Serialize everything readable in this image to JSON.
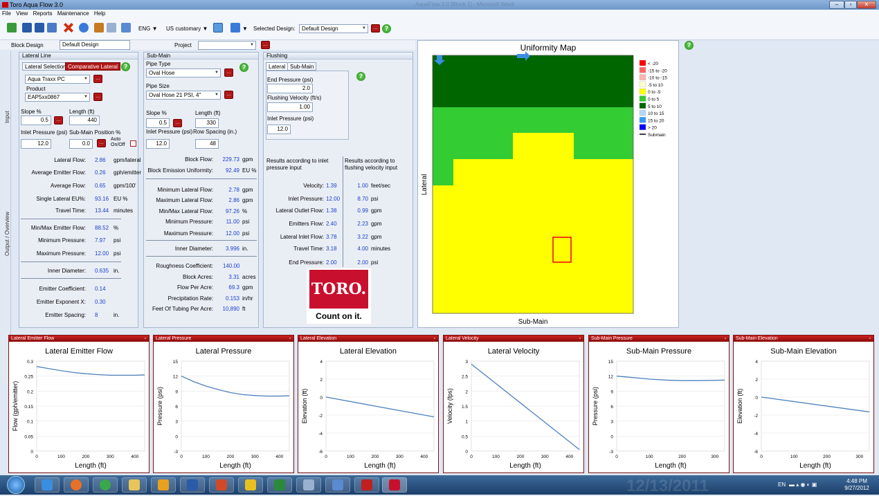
{
  "window": {
    "title": "Toro Aqua Flow 3.0",
    "ghost_title": "AquaFlow 3.0 [Block 1] - Microsoft Word"
  },
  "menu": [
    "File",
    "View",
    "Reports",
    "Maintenance",
    "Help"
  ],
  "toolbar": {
    "language": "ENG",
    "units": "US customary",
    "selected_design_label": "Selected Design:",
    "selected_design": "Default Design"
  },
  "block": {
    "label": "Block Design",
    "value": "Default Design",
    "project_label": "Project",
    "project_value": ""
  },
  "side_tabs": {
    "input": "Input",
    "output": "Output / Overview"
  },
  "lateral": {
    "title": "Lateral Line",
    "tab1": "Lateral Selection",
    "tab2": "Comparative Lateral",
    "pipe": "Aqua Traxx PC",
    "product_label": "Product",
    "product": "EAP5xx0867",
    "slope_label": "Slope %",
    "slope": "0.5",
    "length_label": "Length (ft)",
    "length": "440",
    "inlet_label": "Inlet Pressure (psi)",
    "inlet": "12.0",
    "submain_pos_label": "Sub-Main Position %",
    "submain_pos": "0.0",
    "auto_label": "Auto On/Off",
    "results": [
      {
        "label": "Lateral Flow:",
        "value": "2.86",
        "unit": "gpm/lateral"
      },
      {
        "label": "Average Emitter Flow:",
        "value": "0.26",
        "unit": "gph/emitter"
      },
      {
        "label": "Average Flow:",
        "value": "0.65",
        "unit": "gpm/100'"
      },
      {
        "label": "Single Lateral EU%:",
        "value": "93.16",
        "unit": "EU %"
      },
      {
        "label": "Travel Time:",
        "value": "13.44",
        "unit": "minutes"
      },
      {
        "label": "Min/Max Emitter Flow:",
        "value": "88.52",
        "unit": "%"
      },
      {
        "label": "Minimum Pressure:",
        "value": "7.97",
        "unit": "psi"
      },
      {
        "label": "Maximum Pressure:",
        "value": "12.00",
        "unit": "psi"
      },
      {
        "label": "Inner Diameter:",
        "value": "0.635",
        "unit": "in."
      },
      {
        "label": "Emitter Coefficient:",
        "value": "0.14",
        "unit": ""
      },
      {
        "label": "Emitter Exponent X:",
        "value": "0.30",
        "unit": ""
      },
      {
        "label": "Emitter Spacing:",
        "value": "8",
        "unit": "in."
      }
    ]
  },
  "submain": {
    "title": "Sub-Main",
    "pipe_type_label": "Pipe Type",
    "pipe_type": "Oval Hose",
    "pipe_size_label": "Pipe Size",
    "pipe_size": "Oval Hose 21 PSI, 4\"",
    "slope_label": "Slope %",
    "slope": "0.5",
    "length_label": "Length (ft)",
    "length": "330",
    "inlet_label": "Inlet Pressure (psi)",
    "inlet": "12.0",
    "row_label": "Row Spacing (in.)",
    "row": "48",
    "results": [
      {
        "label": "Block Flow:",
        "value": "229.73",
        "unit": "gpm"
      },
      {
        "label": "Block Emission Uniformity:",
        "value": "92.49",
        "unit": "EU %"
      },
      {
        "label": "Minimum Lateral Flow:",
        "value": "2.78",
        "unit": "gpm"
      },
      {
        "label": "Maximum Lateral Flow:",
        "value": "2.86",
        "unit": "gpm"
      },
      {
        "label": "Min/Max Lateral Flow:",
        "value": "97.26",
        "unit": "%"
      },
      {
        "label": "Minimum Pressure:",
        "value": "11.00",
        "unit": "psi"
      },
      {
        "label": "Maximum Pressure:",
        "value": "12.00",
        "unit": "psi"
      },
      {
        "label": "Inner Diameter:",
        "value": "3.996",
        "unit": "in."
      },
      {
        "label": "Roughness Coefficient:",
        "value": "140.00",
        "unit": ""
      },
      {
        "label": "Block Acres:",
        "value": "3.31",
        "unit": "acres"
      },
      {
        "label": "Flow Per Acre:",
        "value": "69.3",
        "unit": "gpm"
      },
      {
        "label": "Precipitation Rate:",
        "value": "0.153",
        "unit": "in/hr"
      },
      {
        "label": "Feet Of Tubing Per Acre:",
        "value": "10,890",
        "unit": "ft"
      }
    ]
  },
  "flushing": {
    "title": "Flushing",
    "tab1": "Lateral",
    "tab2": "Sub-Main",
    "end_label": "End Pressure (psi)",
    "end": "2.0",
    "vel_label": "Flushing Velocity (ft/s)",
    "vel": "1.00",
    "inlet_label": "Inlet Pressure (psi)",
    "inlet": "12.0",
    "head1": "Results according to inlet pressure input",
    "head2": "Results according to flushing velocity input",
    "results": [
      {
        "label": "Velocity:",
        "v1": "1.39",
        "v2": "1.00",
        "unit": "feet/sec"
      },
      {
        "label": "Inlet Pressure:",
        "v1": "12.00",
        "v2": "8.70",
        "unit": "psi"
      },
      {
        "label": "Lateral Outlet Flow:",
        "v1": "1.38",
        "v2": "0.99",
        "unit": "gpm"
      },
      {
        "label": "Emitters Flow:",
        "v1": "2.40",
        "v2": "2.23",
        "unit": "gpm"
      },
      {
        "label": "Lateral Inlet Flow:",
        "v1": "3.78",
        "v2": "3.22",
        "unit": "gpm"
      },
      {
        "label": "Travel Time:",
        "v1": "3.18",
        "v2": "4.00",
        "unit": "minutes"
      },
      {
        "label": "End Pressure:",
        "v1": "2.00",
        "v2": "2.00",
        "unit": "psi"
      }
    ],
    "logo": "TORO.",
    "slogan": "Count on it."
  },
  "uniformity": {
    "title": "Uniformity Map",
    "xlabel": "Sub-Main",
    "ylabel": "Lateral",
    "legend": [
      {
        "label": "< -20",
        "color": "#ff0000"
      },
      {
        "label": "-15 to -20",
        "color": "#ff6666"
      },
      {
        "label": "-10 to -15",
        "color": "#ffb3b3"
      },
      {
        "label": "-5 to 10",
        "color": "#ffffcc"
      },
      {
        "label": "0 to -5",
        "color": "#ffff00"
      },
      {
        "label": "0 to 5",
        "color": "#33cc33"
      },
      {
        "label": "5 to 10",
        "color": "#006600"
      },
      {
        "label": "10 to 15",
        "color": "#b3d9ff"
      },
      {
        "label": "15 to 20",
        "color": "#3399ff"
      },
      {
        "label": "> 20",
        "color": "#0000ff"
      },
      {
        "label": "Submain",
        "color": "#000000"
      }
    ]
  },
  "charts": [
    {
      "panel": "Lateral Emitter Flow",
      "title": "Lateral Emitter Flow",
      "xlabel": "Length (ft)",
      "ylabel": "Flow (gph/emitter)",
      "yticks": [
        "0.3",
        "0.25",
        "0.2",
        "0.15",
        "0.1",
        "0.05",
        "0"
      ],
      "ymin": 0,
      "ymax": 0.3,
      "xticks": [
        "0",
        "100",
        "200",
        "300",
        "400"
      ],
      "xmin": 0,
      "xmax": 440,
      "x": [
        0,
        50,
        100,
        150,
        200,
        250,
        300,
        350,
        400,
        440
      ],
      "y": [
        0.282,
        0.275,
        0.268,
        0.262,
        0.258,
        0.255,
        0.253,
        0.253,
        0.253,
        0.254
      ]
    },
    {
      "panel": "Lateral Pressure",
      "title": "Lateral Pressure",
      "xlabel": "Length (ft)",
      "ylabel": "Pressure (psi)",
      "yticks": [
        "15",
        "12",
        "9",
        "6",
        "3",
        "0",
        "-3"
      ],
      "ymin": -3,
      "ymax": 15,
      "xticks": [
        "0",
        "100",
        "200",
        "300",
        "400"
      ],
      "xmin": 0,
      "xmax": 440,
      "x": [
        0,
        50,
        100,
        150,
        200,
        250,
        300,
        350,
        400,
        440
      ],
      "y": [
        12,
        10.9,
        10,
        9.3,
        8.7,
        8.3,
        8.1,
        8.0,
        8.0,
        8.05
      ]
    },
    {
      "panel": "Lateral Elevation",
      "title": "Lateral Elevation",
      "xlabel": "Length (ft)",
      "ylabel": "Elevation (ft)",
      "yticks": [
        "4",
        "2",
        "0",
        "-2",
        "-4",
        "-6"
      ],
      "ymin": -6,
      "ymax": 4,
      "xticks": [
        "0",
        "100",
        "200",
        "300",
        "400"
      ],
      "xmin": 0,
      "xmax": 440,
      "x": [
        0,
        440
      ],
      "y": [
        0,
        -2.2
      ]
    },
    {
      "panel": "Lateral Velocity",
      "title": "Lateral Velocity",
      "xlabel": "Length (ft)",
      "ylabel": "Velocity (fps)",
      "yticks": [
        "3",
        "2.5",
        "2",
        "1.5",
        "1",
        "0.5",
        "0"
      ],
      "ymin": 0,
      "ymax": 3,
      "xticks": [
        "0",
        "100",
        "200",
        "300",
        "400"
      ],
      "xmin": 0,
      "xmax": 440,
      "x": [
        0,
        440
      ],
      "y": [
        2.9,
        0.05
      ]
    },
    {
      "panel": "Sub-Main Pressure",
      "title": "Sub-Main Pressure",
      "xlabel": "Length (ft)",
      "ylabel": "Pressure (psi)",
      "yticks": [
        "15",
        "12",
        "9",
        "6",
        "3",
        "0",
        "-3"
      ],
      "ymin": -3,
      "ymax": 15,
      "xticks": [
        "0",
        "100",
        "200",
        "300"
      ],
      "xmin": 0,
      "xmax": 330,
      "x": [
        0,
        50,
        100,
        150,
        200,
        250,
        300,
        330
      ],
      "y": [
        12,
        11.7,
        11.4,
        11.2,
        11.1,
        11.1,
        11.15,
        11.2
      ]
    },
    {
      "panel": "Sub-Main Elevation",
      "title": "Sub-Main Elevation",
      "xlabel": "Length (ft)",
      "ylabel": "Elevation (ft)",
      "yticks": [
        "4",
        "2",
        "0",
        "-2",
        "-4",
        "-6"
      ],
      "ymin": -6,
      "ymax": 4,
      "xticks": [
        "0",
        "100",
        "200",
        "300"
      ],
      "xmin": 0,
      "xmax": 330,
      "x": [
        0,
        330
      ],
      "y": [
        0,
        -1.65
      ]
    }
  ],
  "taskbar": {
    "lang": "EN",
    "time": "4:48 PM",
    "date": "9/27/2012",
    "watermark": "12/13/2011"
  }
}
